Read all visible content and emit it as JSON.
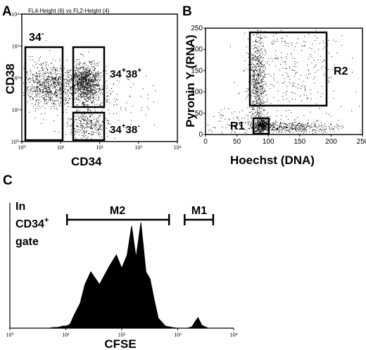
{
  "panels": {
    "a": {
      "letter": "A",
      "header": "FL4-Height (6) vs FL2-Height (4)",
      "xlabel": "CD34",
      "ylabel": "CD38",
      "ticks": [
        "10⁰",
        "10¹",
        "10²",
        "10³",
        "10⁴"
      ],
      "gates": {
        "neg": {
          "base": "34",
          "sup": "-"
        },
        "pos_pos": {
          "b1": "34",
          "s1": "+",
          "b2": "38",
          "s2": "+"
        },
        "pos_neg": {
          "b1": "34",
          "s1": "+",
          "b2": "38",
          "s2": "-"
        }
      }
    },
    "b": {
      "letter": "B",
      "xlabel": "Hoechst (DNA)",
      "ylabel": "Pyronin Y (RNA)",
      "xticks": [
        "0",
        "50",
        "100",
        "150",
        "200",
        "250"
      ],
      "yticks": [
        "0",
        "50",
        "100",
        "150",
        "200",
        "250"
      ],
      "gate_r1": "R1",
      "gate_r2": "R2"
    },
    "c": {
      "letter": "C",
      "xlabel": "CFSE",
      "xticks": [
        "10⁰",
        "10¹",
        "10²",
        "10³",
        "10⁴"
      ],
      "note_line1": "In",
      "note_line2_base": "CD34",
      "note_line2_sup": "+",
      "note_line3": "gate",
      "marker_m1": "M1",
      "marker_m2": "M2"
    }
  },
  "chart_data": [
    {
      "type": "scatter",
      "panel": "A",
      "title": "FL4-Height (6) vs FL2-Height (4)",
      "xlabel": "CD34",
      "ylabel": "CD38",
      "xscale": "log",
      "yscale": "log",
      "xlim": [
        1,
        10000
      ],
      "ylim": [
        1,
        10000
      ],
      "populations": [
        {
          "name": "34-",
          "x_range": [
            1,
            10
          ],
          "y_range": [
            3,
            1000
          ]
        },
        {
          "name": "34+38+",
          "x_range": [
            20,
            150
          ],
          "y_range": [
            15,
            500
          ]
        },
        {
          "name": "34+38-",
          "x_range": [
            20,
            150
          ],
          "y_range": [
            1,
            10
          ]
        }
      ]
    },
    {
      "type": "scatter",
      "panel": "B",
      "xlabel": "Hoechst (DNA)",
      "ylabel": "Pyronin Y (RNA)",
      "xlim": [
        0,
        250
      ],
      "ylim": [
        0,
        250
      ],
      "gates": [
        {
          "name": "R1",
          "x_range": [
            75,
            100
          ],
          "y_range": [
            10,
            35
          ]
        },
        {
          "name": "R2",
          "x_range": [
            75,
            200
          ],
          "y_range": [
            75,
            250
          ]
        }
      ]
    },
    {
      "type": "area",
      "panel": "C",
      "xlabel": "CFSE",
      "xscale": "log",
      "xlim": [
        1,
        10000
      ],
      "x": [
        1,
        3,
        5,
        6,
        7,
        8,
        9,
        10,
        11,
        12,
        14,
        18,
        22,
        28,
        40,
        60,
        80,
        100,
        125,
        150,
        180,
        220,
        270,
        320,
        380,
        450,
        600,
        800,
        1000,
        1200,
        1500,
        1800,
        2000,
        2300,
        2700,
        3500,
        10000
      ],
      "y": [
        0,
        0,
        0,
        1,
        1,
        2,
        3,
        3,
        4,
        6,
        18,
        35,
        62,
        80,
        62,
        88,
        104,
        85,
        104,
        145,
        100,
        150,
        80,
        70,
        40,
        14,
        3,
        1,
        0,
        0,
        0,
        2,
        8,
        15,
        4,
        0,
        0
      ],
      "markers": [
        {
          "name": "M2",
          "x_range": [
            10.5,
            700
          ]
        },
        {
          "name": "M1",
          "x_range": [
            1330,
            4300
          ]
        }
      ]
    }
  ]
}
